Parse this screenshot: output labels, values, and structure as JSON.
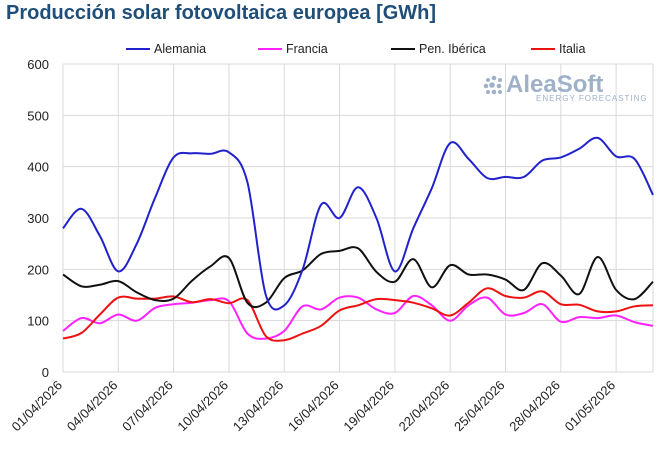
{
  "title": "Producción solar fotovoltaica europea [GWh]",
  "watermark": {
    "brand": "AleaSoft",
    "tagline": "ENERGY FORECASTING"
  },
  "chart_data": {
    "type": "line",
    "title": "Producción solar fotovoltaica europea [GWh]",
    "xlabel": "",
    "ylabel": "",
    "ylim": [
      0,
      600
    ],
    "yticks": [
      0,
      100,
      200,
      300,
      400,
      500,
      600
    ],
    "grid": true,
    "legend_position": "top",
    "categories": [
      "01/04/2026",
      "02/04/2026",
      "03/04/2026",
      "04/04/2026",
      "05/04/2026",
      "06/04/2026",
      "07/04/2026",
      "08/04/2026",
      "09/04/2026",
      "10/04/2026",
      "11/04/2026",
      "12/04/2026",
      "13/04/2026",
      "14/04/2026",
      "15/04/2026",
      "16/04/2026",
      "17/04/2026",
      "18/04/2026",
      "19/04/2026",
      "20/04/2026",
      "21/04/2026",
      "22/04/2026",
      "23/04/2026",
      "24/04/2026",
      "25/04/2026",
      "26/04/2026",
      "27/04/2026",
      "28/04/2026",
      "29/04/2026",
      "30/04/2026",
      "01/05/2026",
      "02/05/2026",
      "03/05/2026"
    ],
    "tick_labels": [
      "01/04/2026",
      "04/04/2026",
      "07/04/2026",
      "10/04/2026",
      "13/04/2026",
      "16/04/2026",
      "19/04/2026",
      "22/04/2026",
      "25/04/2026",
      "28/04/2026",
      "01/05/2026"
    ],
    "series": [
      {
        "name": "Alemania",
        "color": "#2222cc",
        "values": [
          280,
          318,
          265,
          196,
          250,
          340,
          418,
          426,
          425,
          428,
          370,
          150,
          130,
          200,
          326,
          300,
          360,
          300,
          196,
          280,
          358,
          446,
          415,
          378,
          380,
          380,
          412,
          418,
          435,
          456,
          420,
          415,
          345
        ]
      },
      {
        "name": "Francia",
        "color": "#ff22ff",
        "values": [
          80,
          105,
          95,
          112,
          100,
          125,
          132,
          135,
          140,
          138,
          75,
          65,
          80,
          128,
          122,
          145,
          145,
          122,
          115,
          148,
          130,
          100,
          130,
          145,
          112,
          115,
          132,
          98,
          107,
          105,
          110,
          97,
          90
        ]
      },
      {
        "name": "Pen. Ibérica",
        "color": "#111111",
        "values": [
          190,
          167,
          170,
          177,
          155,
          140,
          143,
          178,
          206,
          222,
          135,
          135,
          183,
          198,
          230,
          236,
          241,
          195,
          176,
          220,
          165,
          208,
          190,
          190,
          180,
          160,
          212,
          188,
          152,
          224,
          160,
          142,
          176
        ]
      },
      {
        "name": "Italia",
        "color": "#ee1111",
        "values": [
          65,
          76,
          112,
          145,
          143,
          143,
          147,
          136,
          142,
          134,
          140,
          70,
          62,
          75,
          90,
          120,
          130,
          142,
          140,
          135,
          124,
          110,
          135,
          163,
          148,
          145,
          157,
          132,
          131,
          118,
          118,
          128,
          130
        ]
      }
    ]
  }
}
